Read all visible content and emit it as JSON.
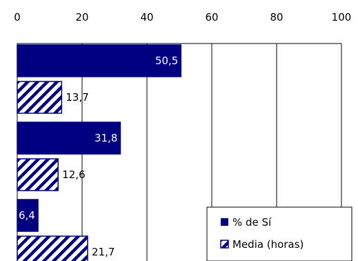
{
  "chart_data": {
    "type": "bar",
    "orientation": "horizontal",
    "title": "",
    "xlabel": "",
    "ylabel": "",
    "xlim": [
      0,
      100
    ],
    "x_ticks": [
      "0",
      "20",
      "40",
      "60",
      "80",
      "100"
    ],
    "grid": "vertical",
    "legend_position": "bottom-right",
    "groups": 3,
    "series": [
      {
        "name": "% de Sí",
        "color": "#000080",
        "pattern": "solid",
        "values": [
          50.5,
          31.8,
          6.4
        ],
        "labels": [
          "50,5",
          "31,8",
          "6,4"
        ]
      },
      {
        "name": "Media (horas)",
        "color": "#000080",
        "pattern": "diagonal-hatch",
        "values": [
          13.7,
          12.6,
          21.7
        ],
        "labels": [
          "13,7",
          "12,6",
          "21,7"
        ]
      }
    ]
  }
}
